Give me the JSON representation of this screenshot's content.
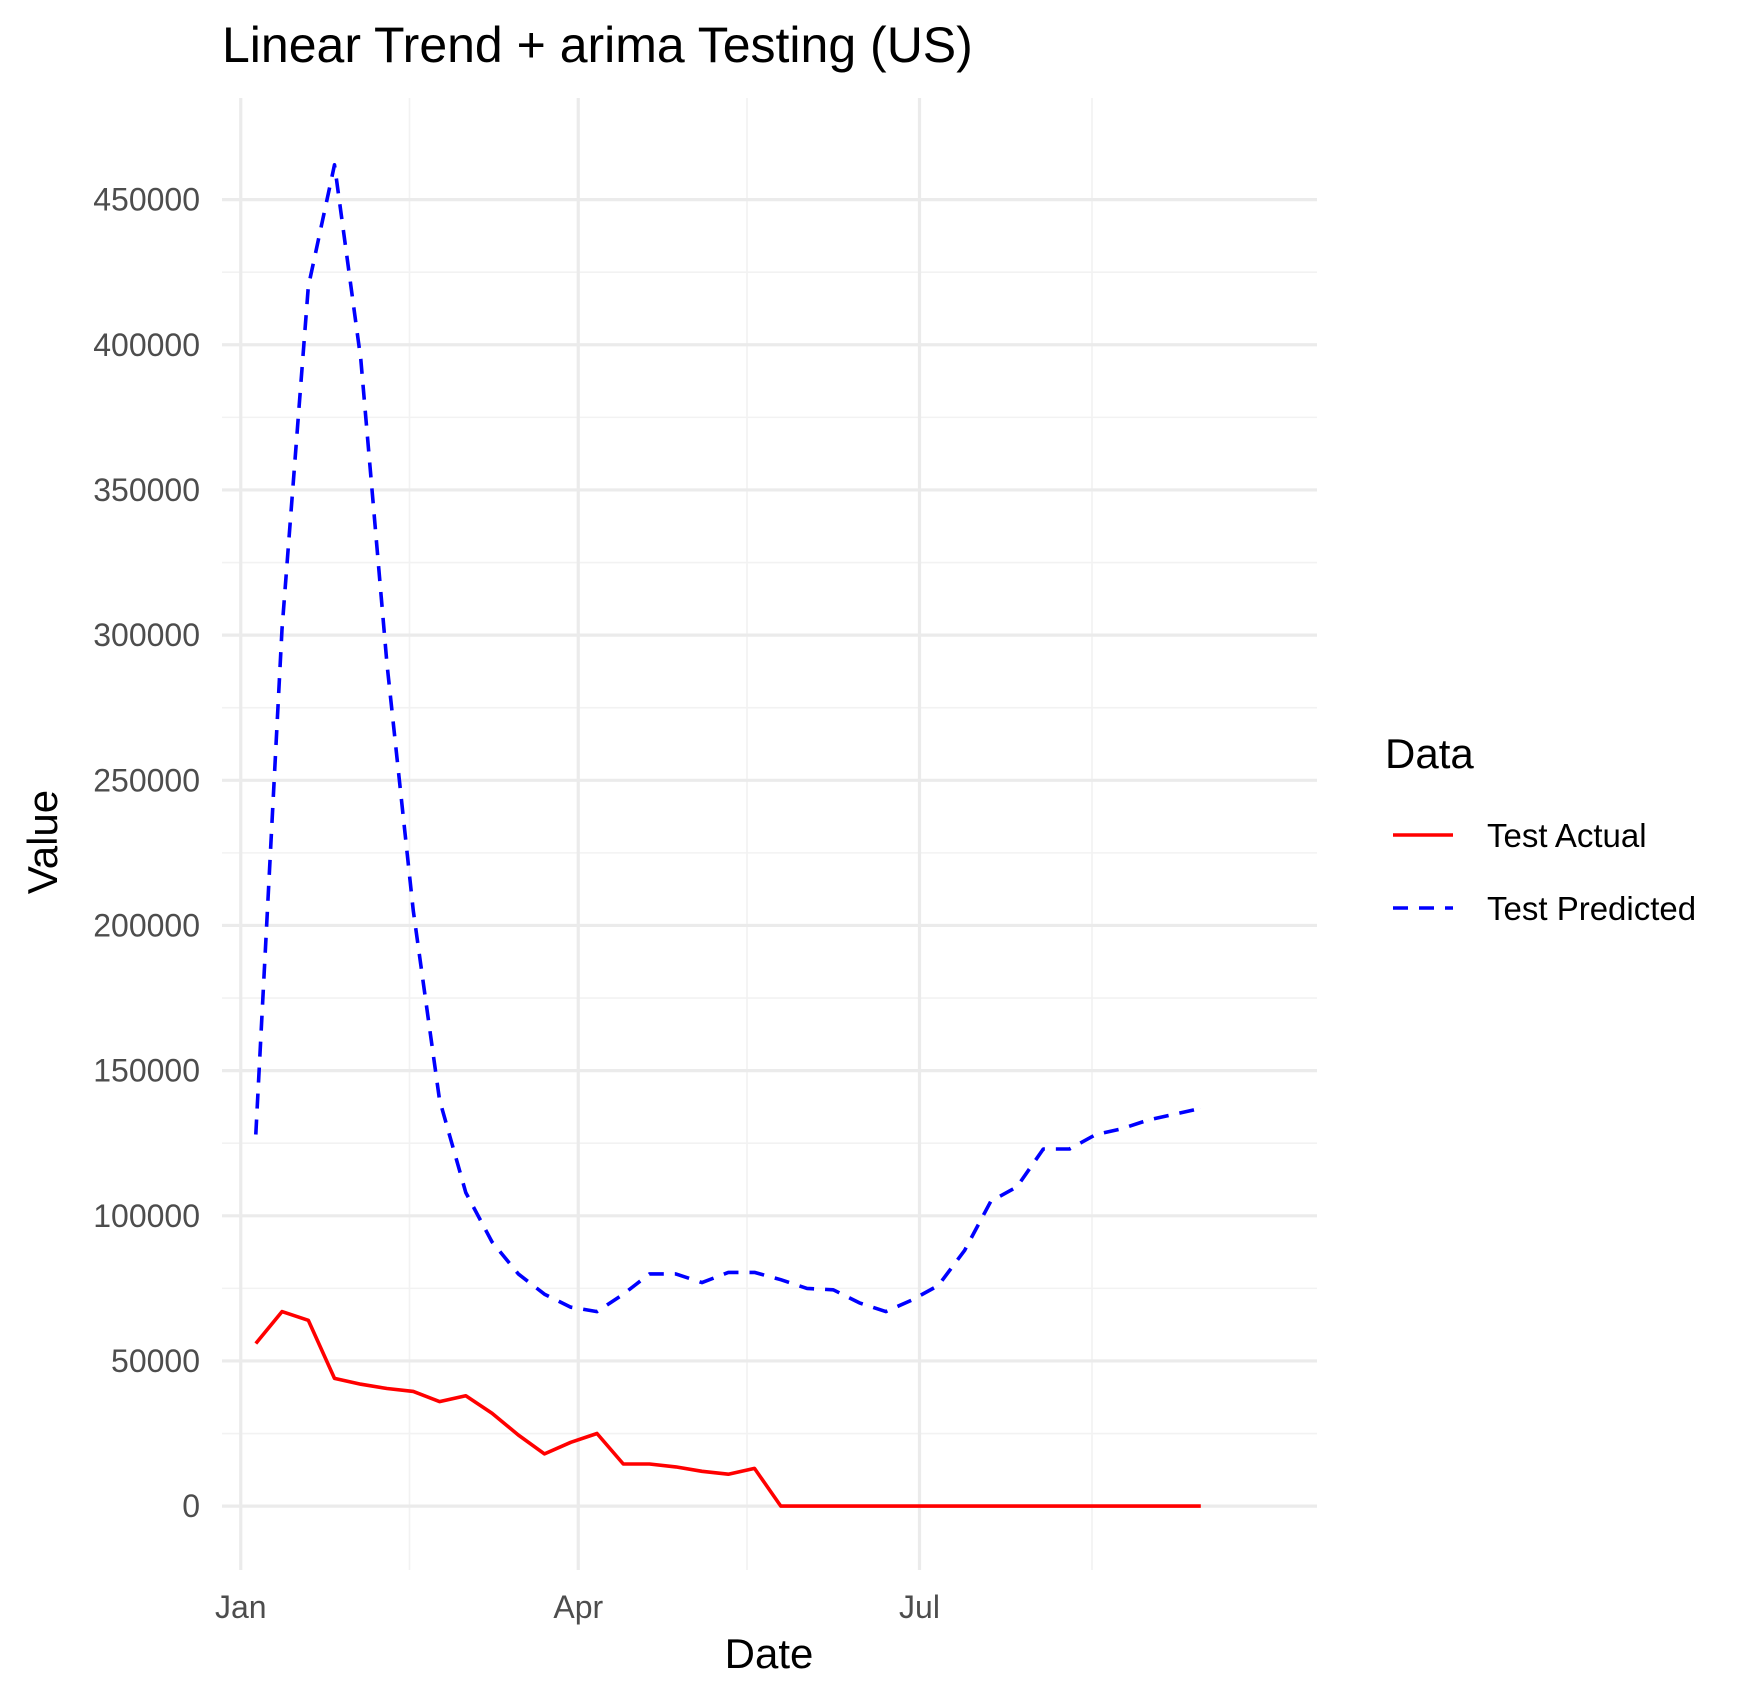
{
  "chart_data": {
    "type": "line",
    "title": "Linear Trend + arima Testing (US)",
    "xlabel": "Date",
    "ylabel": "Value",
    "x_ticks": [
      "Jan",
      "Apr",
      "Jul"
    ],
    "y_ticks": [
      "0",
      "50000",
      "100000",
      "150000",
      "200000",
      "250000",
      "300000",
      "350000",
      "400000",
      "450000"
    ],
    "ylim": [
      -22000,
      485000
    ],
    "xlim": [
      "2022-12-27",
      "2023-10-15"
    ],
    "grid": true,
    "legend": {
      "title": "Data",
      "position": "right"
    },
    "x": [
      "2023-01-05",
      "2023-01-12",
      "2023-01-19",
      "2023-01-26",
      "2023-02-02",
      "2023-02-09",
      "2023-02-16",
      "2023-02-23",
      "2023-03-02",
      "2023-03-09",
      "2023-03-16",
      "2023-03-23",
      "2023-03-30",
      "2023-04-06",
      "2023-04-13",
      "2023-04-20",
      "2023-04-27",
      "2023-05-04",
      "2023-05-11",
      "2023-05-18",
      "2023-05-25",
      "2023-06-01",
      "2023-06-08",
      "2023-06-15",
      "2023-06-22",
      "2023-06-29",
      "2023-07-06",
      "2023-07-13",
      "2023-07-20",
      "2023-07-27",
      "2023-08-03",
      "2023-08-10",
      "2023-08-17",
      "2023-08-24",
      "2023-08-31",
      "2023-09-07",
      "2023-09-14"
    ],
    "series": [
      {
        "name": "Test Actual",
        "color": "#ff0000",
        "style": "solid",
        "values": [
          56000,
          67000,
          64000,
          44000,
          42000,
          40500,
          39500,
          36000,
          38000,
          32000,
          24500,
          18000,
          22000,
          25000,
          14500,
          14500,
          13500,
          12000,
          11000,
          13000,
          0,
          0,
          0,
          0,
          0,
          0,
          0,
          0,
          0,
          0,
          0,
          0,
          0,
          0,
          0,
          0,
          0
        ]
      },
      {
        "name": "Test Predicted",
        "color": "#0000ff",
        "style": "dashed",
        "values": [
          128000,
          302000,
          420000,
          462000,
          395000,
          290000,
          205000,
          140000,
          108000,
          91000,
          80000,
          73000,
          68500,
          67000,
          73000,
          80000,
          80000,
          77000,
          80500,
          80500,
          78000,
          75000,
          74500,
          70000,
          67000,
          71000,
          76000,
          88000,
          105000,
          110000,
          123000,
          123000,
          128000,
          130000,
          133000,
          135000,
          137000
        ]
      }
    ]
  }
}
